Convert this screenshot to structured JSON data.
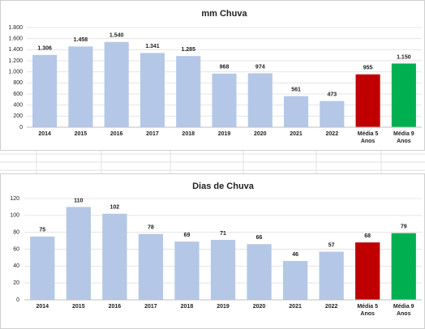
{
  "chart_data": [
    {
      "type": "bar",
      "title": "mm Chuva",
      "categories": [
        "2014",
        "2015",
        "2016",
        "2017",
        "2018",
        "2019",
        "2020",
        "2021",
        "2022",
        "Média 5 Anos",
        "Média 9 Anos"
      ],
      "values": [
        1306,
        1458,
        1540,
        1341,
        1285,
        968,
        974,
        561,
        473,
        955,
        1150
      ],
      "value_labels": [
        "1.306",
        "1.458",
        "1.540",
        "1.341",
        "1.285",
        "968",
        "974",
        "561",
        "473",
        "955",
        "1.150"
      ],
      "colors": [
        "#b4c7e7",
        "#b4c7e7",
        "#b4c7e7",
        "#b4c7e7",
        "#b4c7e7",
        "#b4c7e7",
        "#b4c7e7",
        "#b4c7e7",
        "#b4c7e7",
        "#c00000",
        "#00b050"
      ],
      "ylim": [
        0,
        1800
      ],
      "yticks": [
        0,
        200,
        400,
        600,
        800,
        {
          "value": 1000,
          "label": "1.000"
        },
        {
          "value": 1200,
          "label": "1.200"
        },
        {
          "value": 1400,
          "label": "1.400"
        },
        {
          "value": 1600,
          "label": "1.600"
        },
        {
          "value": 1800,
          "label": "1.800"
        }
      ],
      "grid": true
    },
    {
      "type": "bar",
      "title": "Dias de Chuva",
      "categories": [
        "2014",
        "2015",
        "2016",
        "2017",
        "2018",
        "2019",
        "2020",
        "2021",
        "2022",
        "Média 5 Anos",
        "Média 9 Anos"
      ],
      "values": [
        75,
        110,
        102,
        78,
        69,
        71,
        66,
        46,
        57,
        68,
        79
      ],
      "colors": [
        "#b4c7e7",
        "#b4c7e7",
        "#b4c7e7",
        "#b4c7e7",
        "#b4c7e7",
        "#b4c7e7",
        "#b4c7e7",
        "#b4c7e7",
        "#b4c7e7",
        "#c00000",
        "#00b050"
      ],
      "ylim": [
        0,
        120
      ],
      "yticks": [
        0,
        20,
        40,
        60,
        80,
        100,
        120
      ],
      "grid": true
    }
  ]
}
